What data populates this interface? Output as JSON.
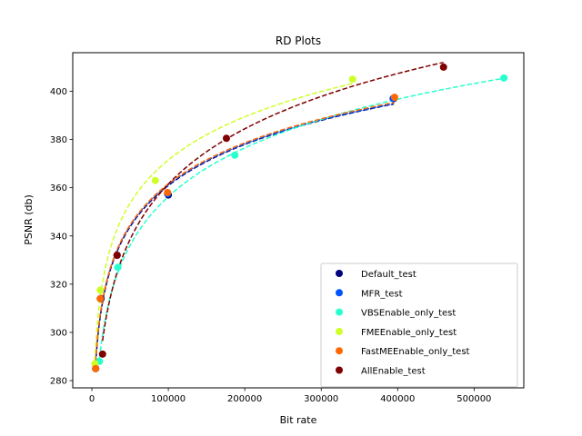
{
  "chart_data": {
    "type": "scatter",
    "title": "RD Plots",
    "xlabel": "Bit rate",
    "ylabel": "PSNR (db)",
    "xlim": [
      -25000,
      565000
    ],
    "ylim": [
      277,
      416
    ],
    "xticks": [
      0,
      100000,
      200000,
      300000,
      400000,
      500000
    ],
    "yticks": [
      280,
      300,
      320,
      340,
      360,
      380,
      400
    ],
    "legend_position": "lower right",
    "grid": false,
    "series": [
      {
        "name": "Default_test",
        "color": "#00007f",
        "x": [
          5000,
          12000,
          33000,
          100000,
          395000
        ],
        "y": [
          285,
          314,
          332,
          357,
          397
        ]
      },
      {
        "name": "MFR_test",
        "color": "#0055ff",
        "x": [
          5000,
          11000,
          33000,
          99000,
          394000
        ],
        "y": [
          285,
          314,
          332,
          357.5,
          397
        ]
      },
      {
        "name": "VBSEnable_only_test",
        "color": "#29ffce",
        "x": [
          10000,
          34000,
          187000,
          539000
        ],
        "y": [
          288,
          327,
          373.5,
          405.5
        ]
      },
      {
        "name": "FMEEnable_only_test",
        "color": "#ceff29",
        "x": [
          4000,
          11000,
          83000,
          341000
        ],
        "y": [
          287,
          317.5,
          363,
          405
        ]
      },
      {
        "name": "FastMEEnable_only_test",
        "color": "#ff6800",
        "x": [
          5000,
          11000,
          33000,
          99000,
          396000
        ],
        "y": [
          285,
          314,
          332,
          358,
          397.5
        ]
      },
      {
        "name": "AllEnable_test",
        "color": "#7f0000",
        "x": [
          14000,
          33000,
          176000,
          460000
        ],
        "y": [
          291,
          332,
          380.5,
          410
        ]
      }
    ]
  }
}
